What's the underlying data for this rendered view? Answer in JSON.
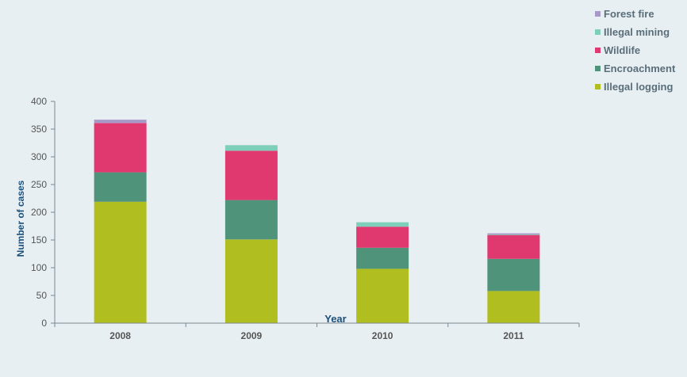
{
  "chart_data": {
    "type": "bar",
    "stacked": true,
    "title": "",
    "xlabel": "Year",
    "ylabel": "Number of cases",
    "categories": [
      "2008",
      "2009",
      "2010",
      "2011"
    ],
    "ylim": [
      0,
      400
    ],
    "yticks": [
      0,
      50,
      100,
      150,
      200,
      250,
      300,
      350,
      400
    ],
    "grid": false,
    "legend_position": "top-right",
    "series": [
      {
        "name": "Illegal logging",
        "color": "#b0bf1f",
        "values": [
          219,
          151,
          98,
          58
        ]
      },
      {
        "name": "Encroachment",
        "color": "#4e937a",
        "values": [
          53,
          71,
          38,
          58
        ]
      },
      {
        "name": "Wildlife",
        "color": "#e0396f",
        "values": [
          89,
          89,
          38,
          43
        ]
      },
      {
        "name": "Illegal mining",
        "color": "#7ecfba",
        "values": [
          0,
          10,
          8,
          1
        ]
      },
      {
        "name": "Forest fire",
        "color": "#a79ac9",
        "values": [
          6,
          0,
          0,
          2
        ]
      }
    ],
    "colors": {
      "axis": "#7a8a92",
      "tick_text": "#555555",
      "axis_label": "#1b4f7a",
      "legend_text": "#5a6e7a",
      "background": "#e8eff3"
    }
  }
}
